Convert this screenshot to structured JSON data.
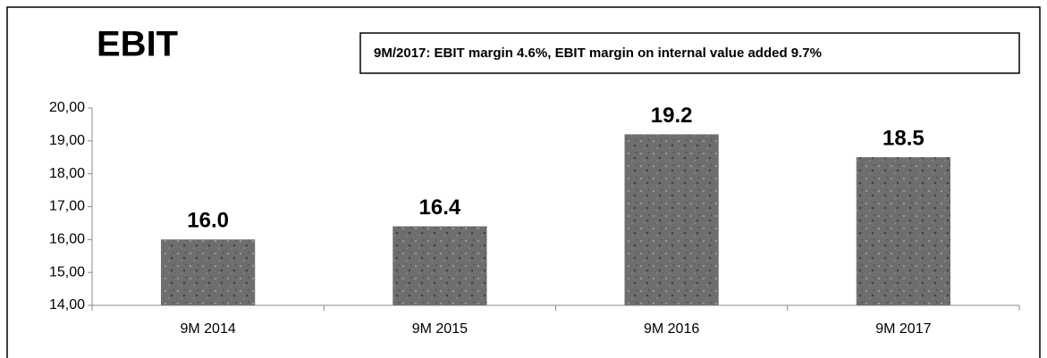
{
  "chart_data": {
    "type": "bar",
    "title": "EBIT",
    "annotation": "9M/2017: EBIT margin 4.6%, EBIT margin on internal value added 9.7%",
    "categories": [
      "9M 2014",
      "9M 2015",
      "9M 2016",
      "9M 2017"
    ],
    "values": [
      16.0,
      16.4,
      19.2,
      18.5
    ],
    "value_labels": [
      "16.0",
      "16.4",
      "19.2",
      "18.5"
    ],
    "color": "#6e6e6e",
    "ylim": [
      14,
      20
    ],
    "yticks": [
      {
        "value": 14,
        "label": "14,00"
      },
      {
        "value": 15,
        "label": "15,00"
      },
      {
        "value": 16,
        "label": "16,00"
      },
      {
        "value": 17,
        "label": "17,00"
      },
      {
        "value": 18,
        "label": "18,00"
      },
      {
        "value": 19,
        "label": "19,00"
      },
      {
        "value": 20,
        "label": "20,00"
      }
    ],
    "grid": false
  }
}
